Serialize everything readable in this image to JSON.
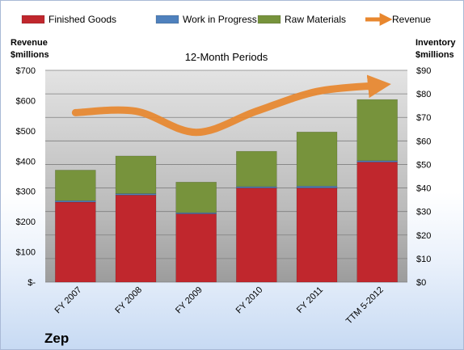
{
  "chart_data": {
    "type": "bar",
    "title": "12-Month Periods",
    "categories": [
      "FY 2007",
      "FY 2008",
      "FY 2009",
      "FY 2010",
      "FY 2011",
      "TTM 5-2012"
    ],
    "series": [
      {
        "name": "Finished Goods",
        "axis": "inventory",
        "color": "#c0272d",
        "values": [
          34,
          37,
          29,
          40,
          40,
          51
        ]
      },
      {
        "name": "Work in Progress",
        "axis": "inventory",
        "color": "#4f81bd",
        "values": [
          0.6,
          0.6,
          0.5,
          0.6,
          0.8,
          0.6
        ]
      },
      {
        "name": "Raw Materials",
        "axis": "inventory",
        "color": "#77933c",
        "values": [
          13,
          16,
          13,
          15,
          23,
          26
        ]
      },
      {
        "name": "Revenue",
        "type": "line",
        "axis": "revenue",
        "color": "#e8872e",
        "values": [
          560,
          565,
          495,
          565,
          630,
          650
        ]
      }
    ],
    "y_left": {
      "label_line1": "Revenue",
      "label_line2": "$millions",
      "range": [
        0,
        700
      ],
      "ticks": [
        "$-",
        "$100",
        "$200",
        "$300",
        "$400",
        "$500",
        "$600",
        "$700"
      ]
    },
    "y_right": {
      "label_line1": "Inventory",
      "label_line2": "$millions",
      "range": [
        0,
        90
      ],
      "ticks": [
        "$0",
        "$10",
        "$20",
        "$30",
        "$40",
        "$50",
        "$60",
        "$70",
        "$80",
        "$90"
      ]
    },
    "grid": true,
    "legend": "top"
  },
  "footer": "Zep"
}
